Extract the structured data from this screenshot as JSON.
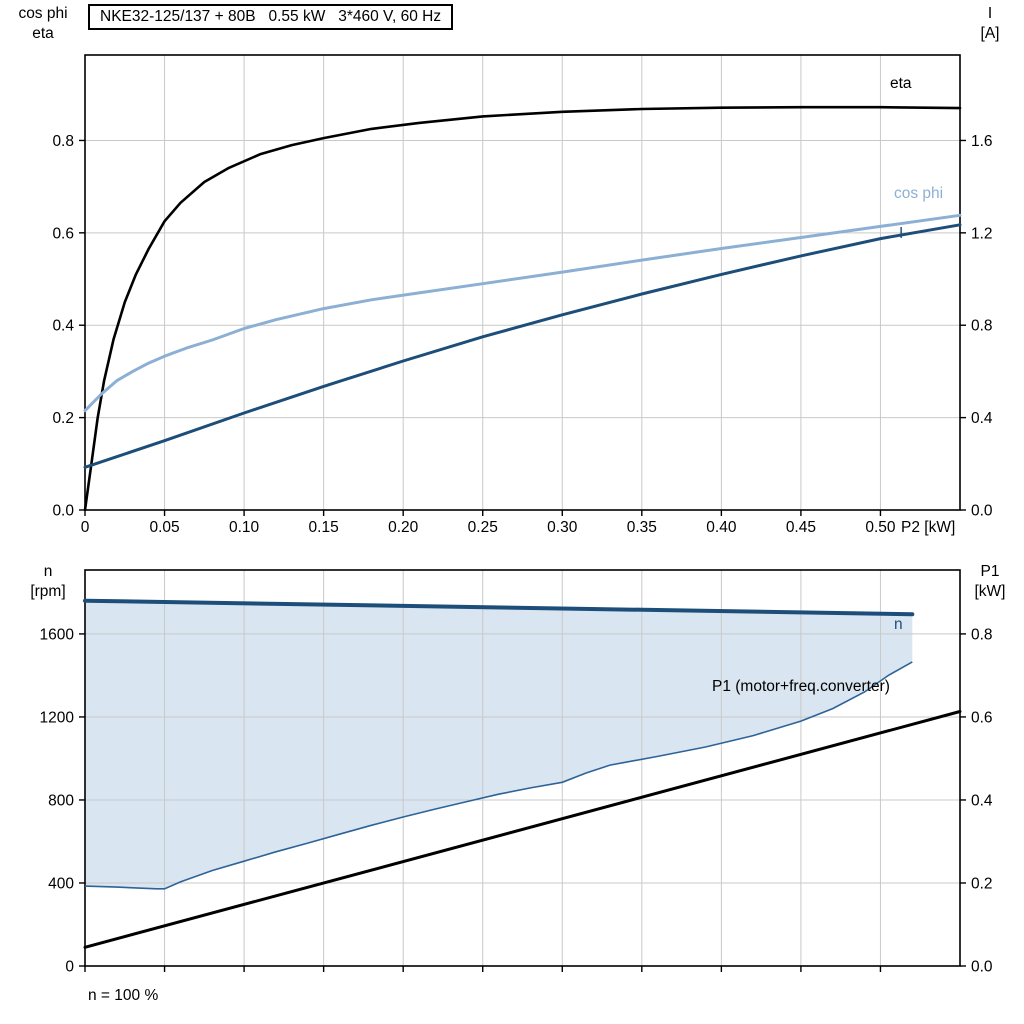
{
  "chart_data": [
    {
      "type": "line",
      "title": "NKE32-125/137 + 80B   0.55 kW   3*460 V, 60 Hz",
      "x_axis": {
        "label": "P2 [kW]",
        "min": 0,
        "max": 0.55,
        "ticks": [
          {
            "v": 0,
            "label": "0"
          },
          {
            "v": 0.05,
            "label": "0.05"
          },
          {
            "v": 0.1,
            "label": "0.10"
          },
          {
            "v": 0.15,
            "label": "0.15"
          },
          {
            "v": 0.2,
            "label": "0.20"
          },
          {
            "v": 0.25,
            "label": "0.25"
          },
          {
            "v": 0.3,
            "label": "0.30"
          },
          {
            "v": 0.35,
            "label": "0.35"
          },
          {
            "v": 0.4,
            "label": "0.40"
          },
          {
            "v": 0.45,
            "label": "0.45"
          },
          {
            "v": 0.5,
            "label": "0.50"
          }
        ]
      },
      "y_axis_left": {
        "title_lines": "cos phi\neta",
        "min": 0,
        "max": 0.985,
        "ticks": [
          {
            "v": 0,
            "label": "0.0"
          },
          {
            "v": 0.2,
            "label": "0.2"
          },
          {
            "v": 0.4,
            "label": "0.4"
          },
          {
            "v": 0.6,
            "label": "0.6"
          },
          {
            "v": 0.8,
            "label": "0.8"
          }
        ]
      },
      "y_axis_right": {
        "title_lines": "I\n[A]",
        "min": 0,
        "max": 1.97,
        "ticks": [
          {
            "v": 0,
            "label": "0.0"
          },
          {
            "v": 0.4,
            "label": "0.4"
          },
          {
            "v": 0.8,
            "label": "0.8"
          },
          {
            "v": 1.2,
            "label": "1.2"
          },
          {
            "v": 1.6,
            "label": "1.6"
          }
        ]
      },
      "series": [
        {
          "name": "eta",
          "label": "eta",
          "axis": "left",
          "color": "#000000",
          "width": 2.6,
          "x": [
            0,
            0.004,
            0.008,
            0.012,
            0.018,
            0.025,
            0.032,
            0.04,
            0.05,
            0.06,
            0.075,
            0.09,
            0.11,
            0.13,
            0.15,
            0.18,
            0.21,
            0.25,
            0.3,
            0.35,
            0.4,
            0.45,
            0.5,
            0.55
          ],
          "y": [
            0,
            0.1,
            0.2,
            0.28,
            0.37,
            0.45,
            0.51,
            0.565,
            0.625,
            0.665,
            0.71,
            0.74,
            0.77,
            0.79,
            0.805,
            0.825,
            0.838,
            0.852,
            0.862,
            0.868,
            0.871,
            0.872,
            0.872,
            0.87
          ]
        },
        {
          "name": "cos-phi",
          "label": "cos phi",
          "axis": "left",
          "color": "#8cb0d4",
          "width": 3,
          "x": [
            0,
            0.01,
            0.02,
            0.03,
            0.04,
            0.05,
            0.065,
            0.08,
            0.1,
            0.12,
            0.15,
            0.18,
            0.21,
            0.25,
            0.3,
            0.35,
            0.4,
            0.45,
            0.5,
            0.55
          ],
          "y": [
            0.215,
            0.25,
            0.28,
            0.3,
            0.318,
            0.333,
            0.352,
            0.368,
            0.393,
            0.412,
            0.436,
            0.455,
            0.47,
            0.49,
            0.515,
            0.541,
            0.566,
            0.59,
            0.614,
            0.638
          ]
        },
        {
          "name": "current",
          "label": "I",
          "axis": "right",
          "color": "#1d4e79",
          "width": 3,
          "x": [
            0,
            0.05,
            0.1,
            0.15,
            0.2,
            0.25,
            0.3,
            0.35,
            0.4,
            0.45,
            0.5,
            0.55
          ],
          "y": [
            0.185,
            0.3,
            0.42,
            0.535,
            0.645,
            0.75,
            0.845,
            0.935,
            1.02,
            1.1,
            1.175,
            1.235
          ]
        }
      ]
    },
    {
      "type": "line",
      "x_axis": {
        "label": "",
        "min": 0,
        "max": 0.55,
        "ticks": [
          {
            "v": 0
          },
          {
            "v": 0.05
          },
          {
            "v": 0.1
          },
          {
            "v": 0.15
          },
          {
            "v": 0.2
          },
          {
            "v": 0.25
          },
          {
            "v": 0.3
          },
          {
            "v": 0.35
          },
          {
            "v": 0.4
          },
          {
            "v": 0.45
          },
          {
            "v": 0.5
          }
        ]
      },
      "y_axis_left": {
        "title_lines": "n\n[rpm]",
        "min": 0,
        "max": 1908,
        "ticks": [
          {
            "v": 0,
            "label": "0"
          },
          {
            "v": 400,
            "label": "400"
          },
          {
            "v": 800,
            "label": "800"
          },
          {
            "v": 1200,
            "label": "1200"
          },
          {
            "v": 1600,
            "label": "1600"
          }
        ]
      },
      "y_axis_right": {
        "title_lines": "P1\n[kW]",
        "min": 0,
        "max": 0.954,
        "ticks": [
          {
            "v": 0,
            "label": "0.0"
          },
          {
            "v": 0.2,
            "label": "0.2"
          },
          {
            "v": 0.4,
            "label": "0.4"
          },
          {
            "v": 0.6,
            "label": "0.6"
          },
          {
            "v": 0.8,
            "label": "0.8"
          }
        ]
      },
      "annotation": "n = 100 %",
      "series": [
        {
          "name": "speed-control-range",
          "type": "area",
          "axis": "left",
          "fill": "#b9cfe3",
          "fill_opacity": 0.55,
          "stroke": "#2d6397",
          "stroke_width": 1.6,
          "lower": {
            "x": [
              0,
              0.02,
              0.045,
              0.05,
              0.06,
              0.08,
              0.1,
              0.12,
              0.14,
              0.16,
              0.18,
              0.2,
              0.22,
              0.24,
              0.26,
              0.28,
              0.3,
              0.315,
              0.33,
              0.36,
              0.39,
              0.42,
              0.45,
              0.47,
              0.49,
              0.505,
              0.52
            ],
            "y": [
              385,
              380,
              372,
              372,
              405,
              460,
              505,
              550,
              592,
              635,
              678,
              718,
              756,
              792,
              828,
              858,
              885,
              930,
              968,
              1010,
              1055,
              1110,
              1180,
              1240,
              1320,
              1400,
              1465
            ]
          },
          "upper": {
            "x": [
              0,
              0.52
            ],
            "y": [
              1760,
              1695
            ]
          }
        },
        {
          "name": "n",
          "label": "n",
          "axis": "left",
          "color": "#1d4e79",
          "width": 4,
          "x": [
            0,
            0.52
          ],
          "y": [
            1760,
            1695
          ]
        },
        {
          "name": "p1",
          "label": "P1 (motor+freq.converter)",
          "axis": "right",
          "color": "#000000",
          "width": 3,
          "x": [
            0,
            0.55
          ],
          "y": [
            0.045,
            0.613
          ]
        }
      ]
    }
  ]
}
